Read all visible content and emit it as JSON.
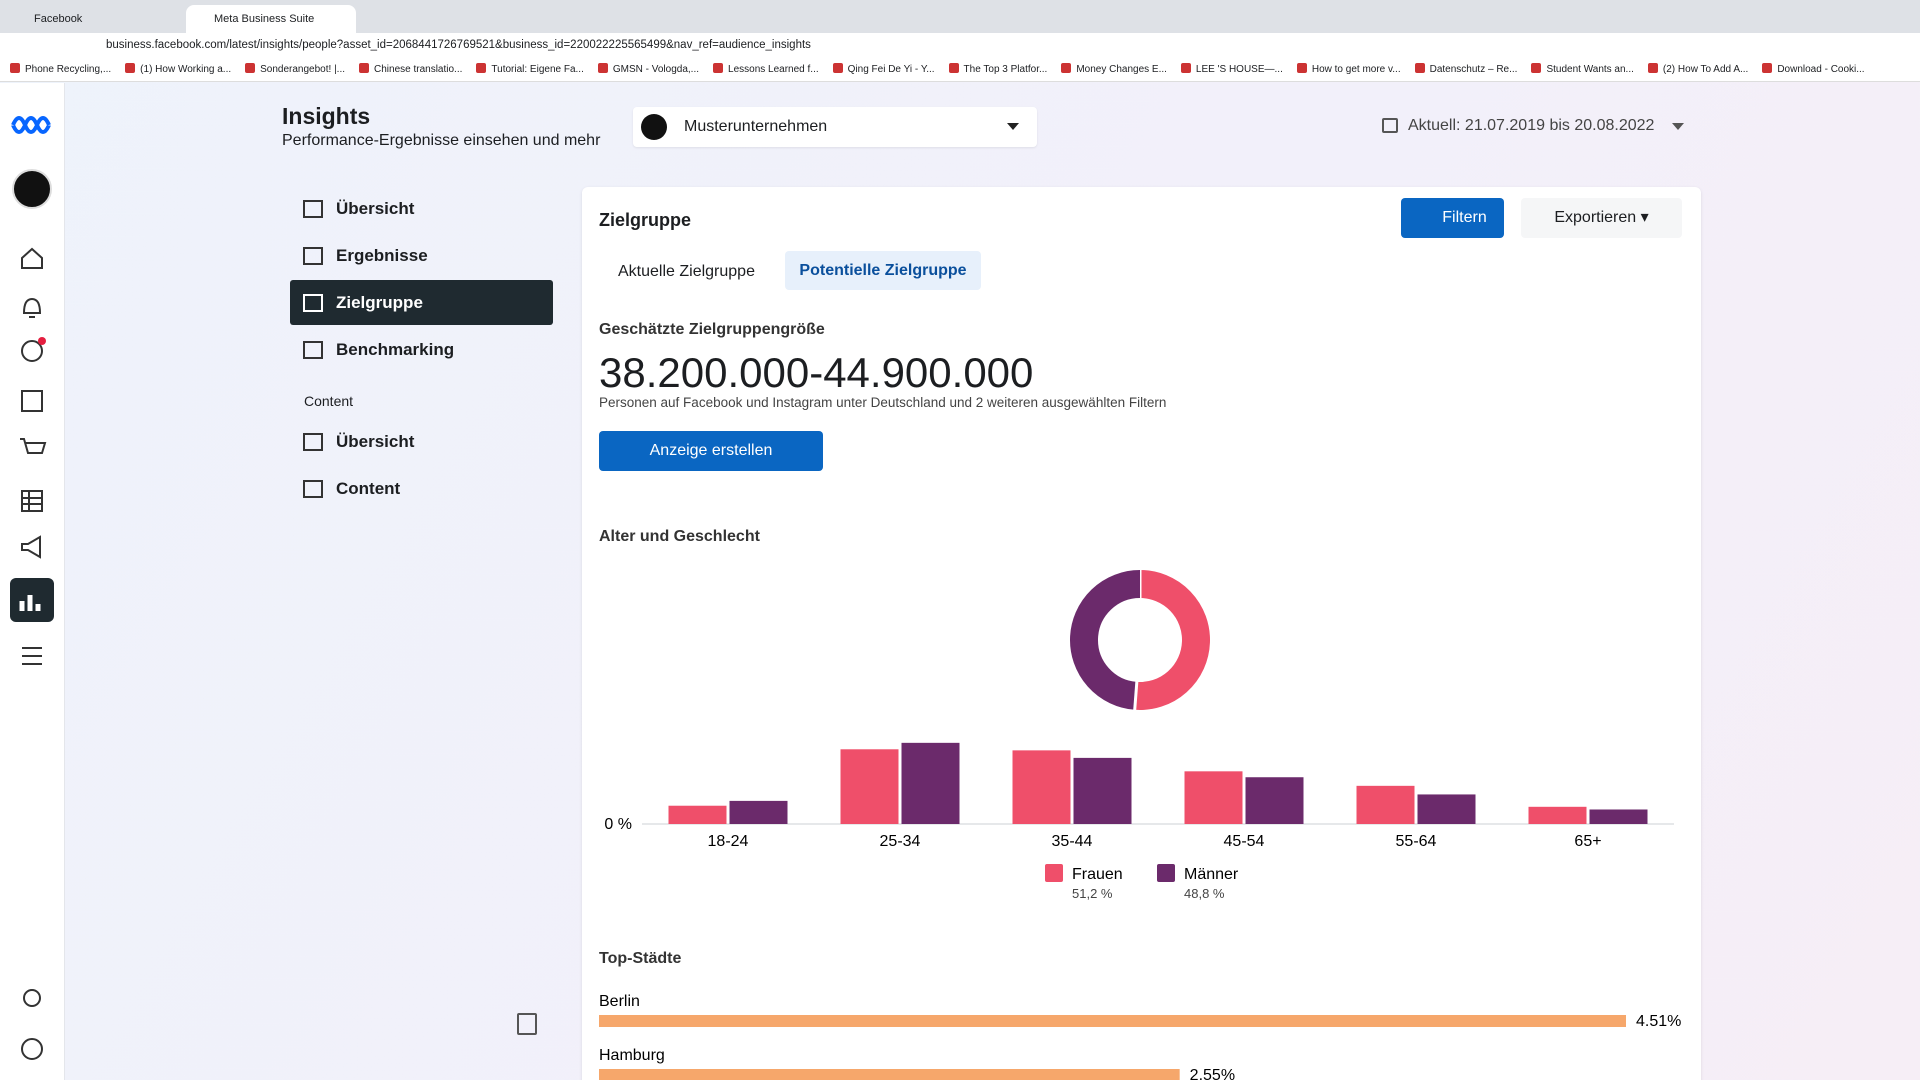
{
  "browser": {
    "tabs": [
      "Facebook",
      "Meta Business Suite"
    ],
    "url": "business.facebook.com/latest/insights/people?asset_id=2068441726769521&business_id=220022225565499&nav_ref=audience_insights",
    "bookmarks": [
      "Phone Recycling,...",
      "(1) How Working a...",
      "Sonderangebot! |...",
      "Chinese translatio...",
      "Tutorial: Eigene Fa...",
      "GMSN - Vologda,...",
      "Lessons Learned f...",
      "Qing Fei De Yi - Y...",
      "The Top 3 Platfor...",
      "Money Changes E...",
      "LEE 'S HOUSE—...",
      "How to get more v...",
      "Datenschutz – Re...",
      "Student Wants an...",
      "(2) How To Add A...",
      "Download - Cooki..."
    ]
  },
  "header": {
    "title": "Insights",
    "subtitle": "Performance-Ergebnisse einsehen und mehr",
    "account": "Musterunternehmen",
    "date_range": "Aktuell: 21.07.2019 bis 20.08.2022"
  },
  "nav": {
    "items": [
      "Übersicht",
      "Ergebnisse",
      "Zielgruppe",
      "Benchmarking"
    ],
    "section": "Content",
    "content_items": [
      "Übersicht",
      "Content"
    ]
  },
  "card": {
    "title": "Zielgruppe",
    "filter_button": "Filtern",
    "export_button": "Exportieren",
    "tabs": [
      "Aktuelle Zielgruppe",
      "Potentielle Zielgruppe"
    ],
    "size_label": "Geschätzte Zielgruppengröße",
    "size_value": "38.200.000-44.900.000",
    "size_note": "Personen auf Facebook und Instagram unter Deutschland und 2 weiteren ausgewählten Filtern",
    "cta": "Anzeige erstellen",
    "age_gender_title": "Alter und Geschlecht",
    "cities_title": "Top-Städte"
  },
  "chart_data": [
    {
      "type": "pie",
      "values": [
        51.2,
        48.8
      ],
      "value_labels": [
        "51,2 %",
        "48,8 %"
      ],
      "colors": [
        "#ef4f6a",
        "#6b2a6b"
      ],
      "donut": true
    },
    {
      "type": "bar",
      "categories": [
        "18-24",
        "25-34",
        "35-44",
        "45-54",
        "55-64",
        "65+"
      ],
      "series": [
        {
          "name": "Frauen",
          "color": "#ef4f6a",
          "values": [
            3.4,
            13.9,
            13.7,
            9.8,
            7.1,
            3.2
          ]
        },
        {
          "name": "Männer",
          "color": "#6b2a6b",
          "values": [
            4.3,
            15.1,
            12.3,
            8.7,
            5.5,
            2.7
          ]
        }
      ],
      "ylim": [
        0,
        16
      ],
      "yticks": [
        {
          "value": 0,
          "label": "0 %"
        }
      ],
      "grid": false,
      "legend": "bottom"
    },
    {
      "type": "hbar",
      "categories": [
        "Berlin",
        "Hamburg"
      ],
      "values": [
        4.51,
        2.55
      ],
      "value_labels": [
        "4.51%",
        "2.55%"
      ],
      "color": "#f6a76b",
      "xlim": [
        0,
        4.51
      ]
    }
  ]
}
